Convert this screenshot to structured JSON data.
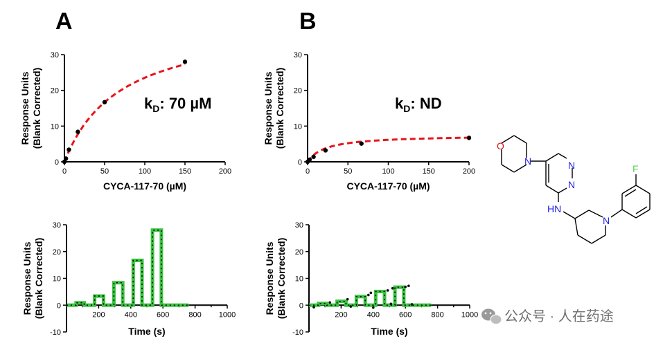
{
  "panels": {
    "A": {
      "label": "A",
      "kd_prefix": "k",
      "kd_sub": "D",
      "kd_value": ": 70 µM"
    },
    "B": {
      "label": "B",
      "kd_prefix": "k",
      "kd_sub": "D",
      "kd_value": ": ND"
    }
  },
  "watermark": {
    "text": "公众号 · 人在药途"
  },
  "molecule": {
    "atoms": {
      "O": "O",
      "N_morph": "N",
      "N_pyr1": "N",
      "N_pyr2": "N",
      "NH": "HN",
      "N_pip": "N",
      "F": "F"
    }
  },
  "chart_data": [
    {
      "id": "A-binding",
      "type": "scatter",
      "xlabel": "CYCA-117-70 (µM)",
      "ylabel_line1": "Response Units",
      "ylabel_line2": "(Blank Corrected)",
      "xlim": [
        0,
        200
      ],
      "ylim": [
        0,
        30
      ],
      "xticks": [
        0,
        50,
        100,
        150,
        200
      ],
      "yticks": [
        0,
        10,
        20,
        30
      ],
      "points": {
        "x": [
          0,
          1.85,
          5.6,
          16.7,
          50,
          150
        ],
        "y": [
          0,
          0.9,
          3.4,
          8.4,
          16.7,
          28
        ]
      },
      "fit": {
        "model": "one-site saturation",
        "Bmax": 40,
        "Kd": 70,
        "color": "#e8141b"
      }
    },
    {
      "id": "B-binding",
      "type": "scatter",
      "xlabel": "CYCA-117-70 (µM)",
      "ylabel_line1": "Response Units",
      "ylabel_line2": "(Blank Corrected)",
      "xlim": [
        0,
        200
      ],
      "ylim": [
        0,
        30
      ],
      "xticks": [
        0,
        50,
        100,
        150,
        200
      ],
      "yticks": [
        0,
        10,
        20,
        30
      ],
      "points": {
        "x": [
          0,
          2.5,
          7.4,
          22.2,
          66.7,
          200
        ],
        "y": [
          0,
          0.6,
          1.4,
          3.2,
          5.1,
          6.7
        ]
      },
      "fit": {
        "model": "one-site saturation",
        "Bmax": 7.5,
        "Kd": 22,
        "color": "#e8141b"
      }
    },
    {
      "id": "A-sensorgram",
      "type": "line",
      "xlabel": "Time (s)",
      "ylabel_line1": "Response Units",
      "ylabel_line2": "(Blank Corrected)",
      "xlim": [
        0,
        1000
      ],
      "ylim": [
        -10,
        30
      ],
      "xticks": [
        200,
        400,
        600,
        800,
        1000
      ],
      "yticks": [
        -10,
        0,
        10,
        20,
        30
      ],
      "series": [
        {
          "x": [
            0,
            60,
            60,
            110,
            110,
            175,
            175,
            230,
            230,
            295,
            295,
            350,
            350,
            415,
            415,
            470,
            470,
            535,
            535,
            590,
            590,
            655,
            655,
            760
          ],
          "y": [
            0,
            0,
            0.9,
            0.9,
            0,
            0,
            3.4,
            3.4,
            0,
            0,
            8.4,
            8.4,
            0,
            0,
            16.7,
            16.7,
            0,
            0,
            28,
            28,
            0,
            0,
            0,
            0
          ],
          "color": "#39c43f"
        }
      ]
    },
    {
      "id": "B-sensorgram",
      "type": "line",
      "xlabel": "Time (s)",
      "ylabel_line1": "Response Units",
      "ylabel_line2": "(Blank Corrected)",
      "xlim": [
        0,
        1000
      ],
      "ylim": [
        -10,
        30
      ],
      "xticks": [
        200,
        400,
        600,
        800,
        1000
      ],
      "yticks": [
        -10,
        0,
        10,
        20,
        30
      ],
      "series": [
        {
          "x": [
            0,
            60,
            60,
            110,
            110,
            175,
            175,
            230,
            230,
            295,
            295,
            350,
            350,
            415,
            415,
            470,
            470,
            535,
            535,
            590,
            590,
            655,
            655,
            760
          ],
          "y": [
            0,
            0,
            0.6,
            0.6,
            0,
            0,
            1.4,
            1.4,
            0,
            0,
            3.2,
            3.2,
            0,
            0,
            5.1,
            5.1,
            0,
            0,
            6.7,
            6.7,
            0,
            0,
            0,
            0
          ],
          "color": "#39c43f"
        }
      ],
      "scatter_points": {
        "x": [
          30,
          130,
          240,
          260,
          370,
          385,
          400,
          490,
          510,
          520,
          600,
          620,
          640
        ],
        "y": [
          -0.8,
          1.0,
          2.2,
          -0.5,
          3.8,
          4.6,
          -0.9,
          5.5,
          0.5,
          6.3,
          6.8,
          7.2,
          0.3
        ]
      }
    }
  ]
}
